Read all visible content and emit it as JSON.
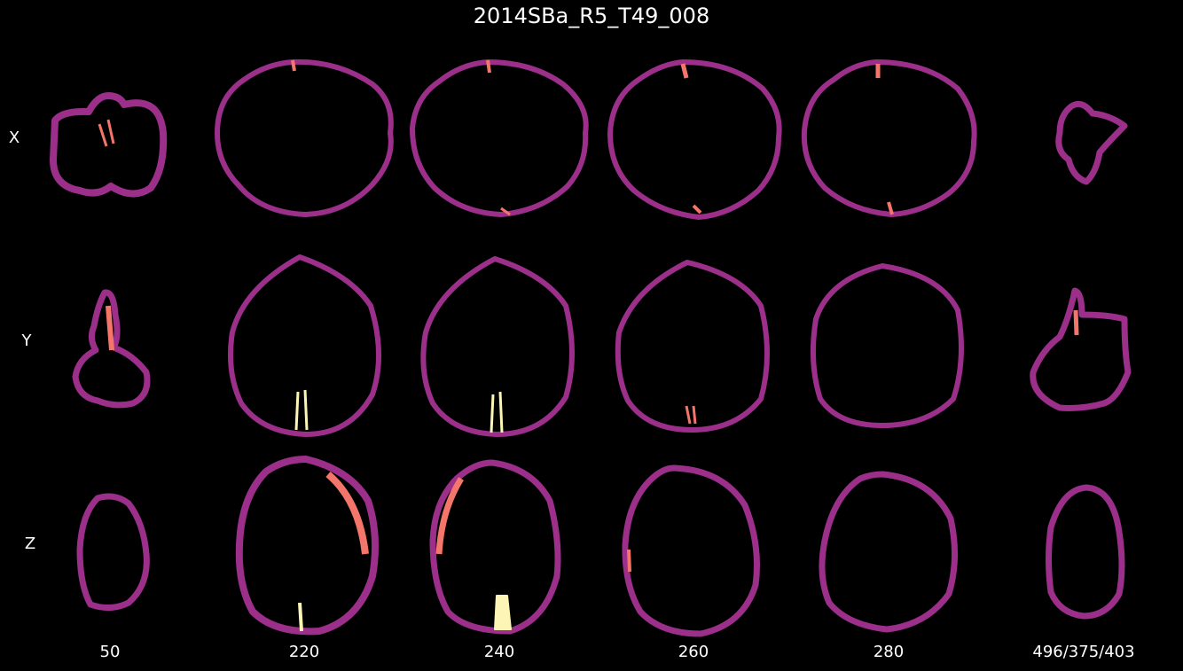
{
  "figure": {
    "title": "2014SBa_R5_T49_008",
    "row_labels": [
      "X",
      "Y",
      "Z"
    ],
    "column_labels": [
      "50",
      "220",
      "240",
      "260",
      "280",
      "496/375/403"
    ]
  },
  "colors": {
    "background": "#000000",
    "outline": "#9b2f8a",
    "highlight": "#f4766a",
    "bright": "#fcf5b6"
  }
}
